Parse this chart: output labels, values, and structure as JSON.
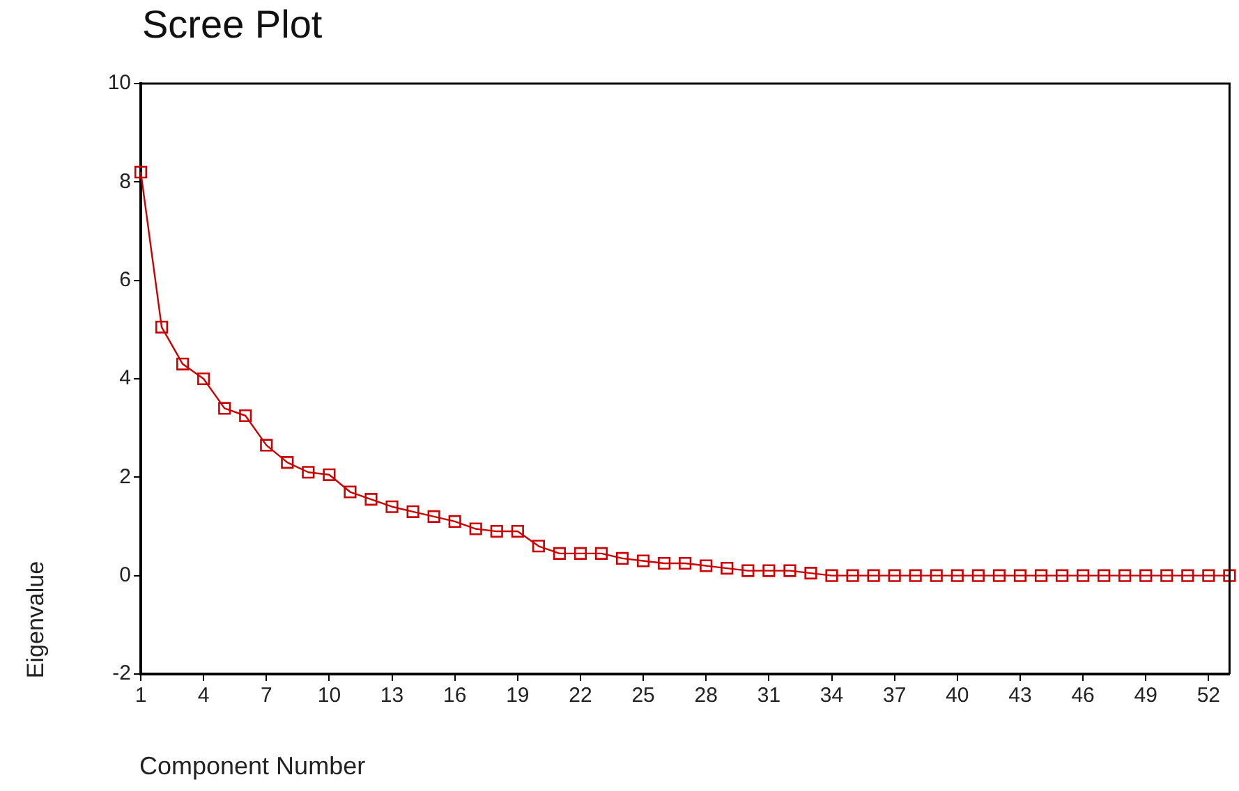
{
  "chart_data": {
    "type": "line",
    "title": "Scree Plot",
    "xlabel": "Component Number",
    "ylabel": "Eigenvalue",
    "x": [
      1,
      2,
      3,
      4,
      5,
      6,
      7,
      8,
      9,
      10,
      11,
      12,
      13,
      14,
      15,
      16,
      17,
      18,
      19,
      20,
      21,
      22,
      23,
      24,
      25,
      26,
      27,
      28,
      29,
      30,
      31,
      32,
      33,
      34,
      35,
      36,
      37,
      38,
      39,
      40,
      41,
      42,
      43,
      44,
      45,
      46,
      47,
      48,
      49,
      50,
      51,
      52,
      53
    ],
    "series": [
      {
        "color": "#cc0000",
        "values": [
          8.2,
          5.05,
          4.3,
          4.0,
          3.4,
          3.25,
          2.65,
          2.3,
          2.1,
          2.05,
          1.7,
          1.55,
          1.4,
          1.3,
          1.2,
          1.1,
          0.95,
          0.9,
          0.9,
          0.6,
          0.45,
          0.45,
          0.45,
          0.35,
          0.3,
          0.25,
          0.25,
          0.2,
          0.15,
          0.1,
          0.1,
          0.1,
          0.05,
          0,
          0,
          0,
          0,
          0,
          0,
          0,
          0,
          0,
          0,
          0,
          0,
          0,
          0,
          0,
          0,
          0,
          0,
          0,
          0
        ]
      }
    ],
    "xlim": [
      1,
      53
    ],
    "xticks": [
      1,
      4,
      7,
      10,
      13,
      16,
      19,
      22,
      25,
      28,
      31,
      34,
      37,
      40,
      43,
      46,
      49,
      52
    ],
    "ylim": [
      -2,
      10
    ],
    "yticks": [
      -2,
      0,
      2,
      4,
      6,
      8,
      10
    ],
    "grid": false,
    "legend": false,
    "marker": "square",
    "line_style": "solid"
  }
}
